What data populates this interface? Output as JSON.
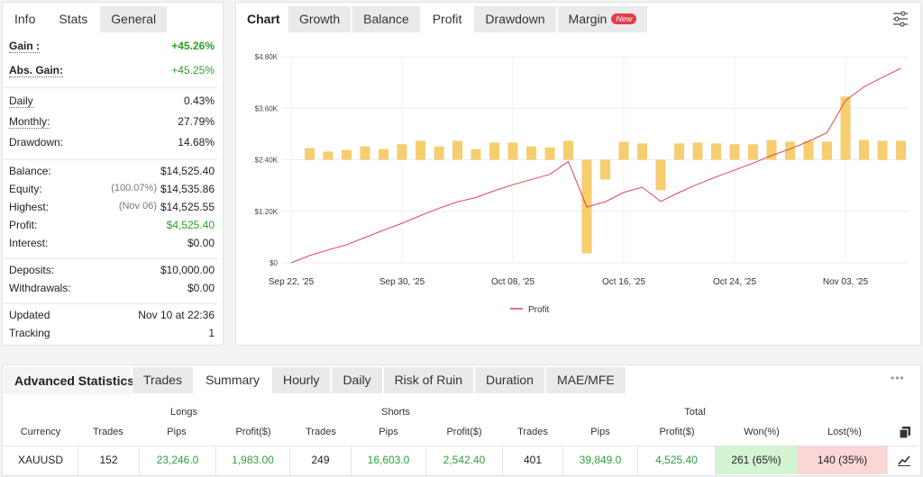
{
  "stats_panel": {
    "tabs": [
      "Info",
      "Stats",
      "General"
    ],
    "groups": [
      [
        {
          "label": "Gain :",
          "value": "+45.26%",
          "color": "#2ca02c"
        },
        {
          "label": "Abs. Gain:",
          "value": "+45.25%",
          "color": "#2ca02c"
        }
      ],
      [
        {
          "label": "Daily",
          "value": "0.43%"
        },
        {
          "label": "Monthly:",
          "value": "27.79%"
        },
        {
          "label": "Drawdown:",
          "value": "14.68%"
        }
      ],
      [
        {
          "label": "Balance:",
          "value": "$14,525.40"
        },
        {
          "label": "Equity:",
          "note": "(100.07%)",
          "value": "$14,535.86"
        },
        {
          "label": "Highest:",
          "note": "(Nov 06)",
          "value": "$14,525.55"
        },
        {
          "label": "Profit:",
          "value": "$4,525.40",
          "color": "#2ca02c"
        },
        {
          "label": "Interest:",
          "value": "$0.00"
        }
      ],
      [
        {
          "label": "Deposits:",
          "value": "$10,000.00"
        },
        {
          "label": "Withdrawals:",
          "value": "$0.00"
        }
      ],
      [
        {
          "label": "Updated",
          "value": "Nov 10 at 22:36"
        },
        {
          "label": "Tracking",
          "value": "1"
        }
      ]
    ]
  },
  "chart_panel": {
    "label": "Chart",
    "tabs": [
      "Growth",
      "Balance",
      "Profit",
      "Drawdown",
      "Margin"
    ],
    "badge": "New"
  },
  "chart_data": {
    "type": "bar-line",
    "categories": [
      null,
      null,
      null,
      null,
      null,
      null,
      null,
      null,
      null,
      null,
      null,
      null,
      null,
      null,
      null,
      null,
      null,
      null,
      null,
      null,
      null,
      null,
      null,
      null,
      null,
      null,
      null,
      null,
      null,
      null,
      null,
      null,
      null,
      null
    ],
    "series": [
      {
        "name": "Profit",
        "type": "line",
        "color": "#d9484f",
        "values": [
          0,
          170,
          300,
          420,
          590,
          760,
          920,
          1100,
          1270,
          1420,
          1520,
          1680,
          1820,
          1940,
          2060,
          2360,
          1300,
          1420,
          1640,
          1760,
          1430,
          1640,
          1830,
          2000,
          2160,
          2320,
          2500,
          2650,
          2830,
          3030,
          3780,
          4100,
          4320,
          4530
        ]
      },
      {
        "type": "bar",
        "axis": "y2",
        "color": "#f6cd6f",
        "values": [
          null,
          270,
          190,
          230,
          310,
          250,
          360,
          440,
          310,
          440,
          250,
          400,
          400,
          310,
          290,
          440,
          -2180,
          -460,
          420,
          380,
          -710,
          380,
          400,
          380,
          360,
          360,
          460,
          420,
          440,
          420,
          1470,
          460,
          440,
          440
        ]
      }
    ],
    "ylim": [
      0,
      4800
    ],
    "yticks": [
      {
        "value": 0,
        "label": "$0"
      },
      {
        "value": 1200,
        "label": "$1.20K"
      },
      {
        "value": 2400,
        "label": "$2.40K"
      },
      {
        "value": 3600,
        "label": "$3.60K"
      },
      {
        "value": 4800,
        "label": "$4.80K"
      }
    ],
    "y2lim": [
      -2400,
      2400
    ],
    "xticks": [
      {
        "value": 0,
        "label": "Sep 22, '25"
      },
      {
        "value": 6,
        "label": "Sep 30, '25"
      },
      {
        "value": 12,
        "label": "Oct 08, '25"
      },
      {
        "value": 18,
        "label": "Oct 16, '25"
      },
      {
        "value": 24,
        "label": "Oct 24, '25"
      },
      {
        "value": 30,
        "label": "Nov 03, '25"
      }
    ],
    "grid": true,
    "legend": "bottom"
  },
  "advanced_statistics": {
    "title": "Advanced Statistics",
    "tabs": [
      "Trades",
      "Summary",
      "Hourly",
      "Daily",
      "Risk of Ruin",
      "Duration",
      "MAE/MFE"
    ],
    "groups": [
      "Longs",
      "Shorts",
      "Total"
    ],
    "columns": [
      "Currency",
      "Trades",
      "Pips",
      "Profit($)",
      "Trades",
      "Pips",
      "Profit($)",
      "Trades",
      "Pips",
      "Profit($)",
      "Won(%)",
      "Lost(%)"
    ],
    "rows": [
      [
        "XAUUSD",
        "152",
        "23,246.0",
        "1,983.00",
        "249",
        "16,603.0",
        "2,542.40",
        "401",
        "39,849.0",
        "4,525.40",
        "261 (65%)",
        "140 (35%)"
      ]
    ]
  }
}
